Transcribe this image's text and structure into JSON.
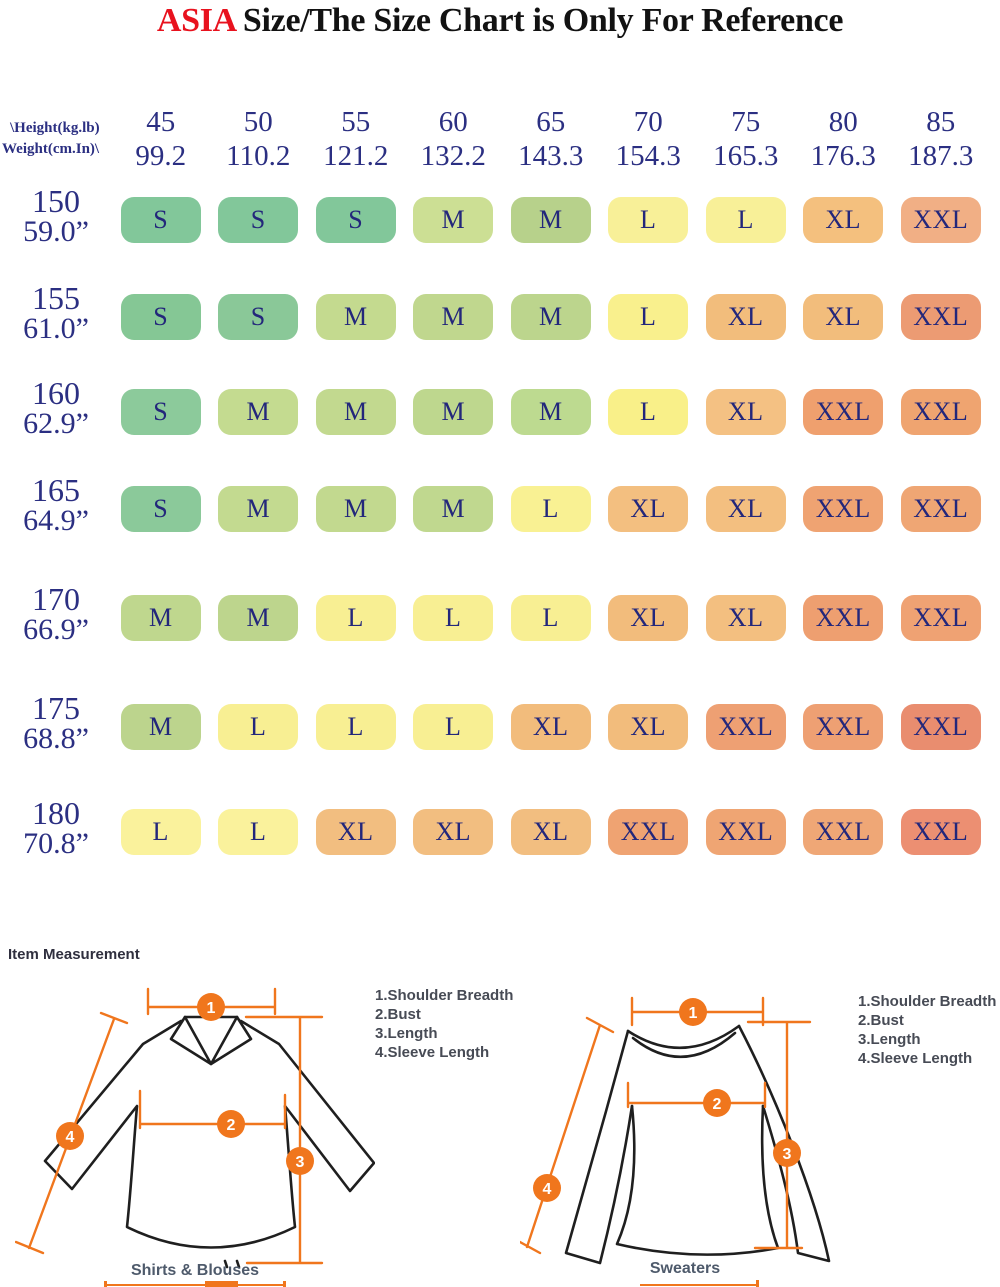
{
  "title": {
    "highlight": "ASIA",
    "rest": "Size/The Size Chart is Only For Reference",
    "highlight_color": "#E8121E"
  },
  "size_chart": {
    "corner": {
      "line1": "\\Height(kg.lb)",
      "line2": "Weight(cm.In)\\"
    },
    "text_color": "#23277B",
    "columns": [
      {
        "kg": "45",
        "lb": "99.2"
      },
      {
        "kg": "50",
        "lb": "110.2"
      },
      {
        "kg": "55",
        "lb": "121.2"
      },
      {
        "kg": "60",
        "lb": "132.2"
      },
      {
        "kg": "65",
        "lb": "143.3"
      },
      {
        "kg": "70",
        "lb": "154.3"
      },
      {
        "kg": "75",
        "lb": "165.3"
      },
      {
        "kg": "80",
        "lb": "176.3"
      },
      {
        "kg": "85",
        "lb": "187.3"
      }
    ],
    "rows": [
      {
        "height_cm": "150",
        "height_in": "59.0”",
        "cells": [
          {
            "label": "S",
            "color": "#82C79A"
          },
          {
            "label": "S",
            "color": "#82C79A"
          },
          {
            "label": "S",
            "color": "#82C79A"
          },
          {
            "label": "M",
            "color": "#CCDF94"
          },
          {
            "label": "M",
            "color": "#B7D18B"
          },
          {
            "label": "L",
            "color": "#F8F098"
          },
          {
            "label": "L",
            "color": "#F8F098"
          },
          {
            "label": "XL",
            "color": "#F4C07E"
          },
          {
            "label": "XXL",
            "color": "#F1AF85"
          }
        ]
      },
      {
        "height_cm": "155",
        "height_in": "61.0”",
        "cells": [
          {
            "label": "S",
            "color": "#85C795"
          },
          {
            "label": "S",
            "color": "#8AC898"
          },
          {
            "label": "M",
            "color": "#C4DA8F"
          },
          {
            "label": "M",
            "color": "#C0D78E"
          },
          {
            "label": "M",
            "color": "#BCD58D"
          },
          {
            "label": "L",
            "color": "#F9F08D"
          },
          {
            "label": "XL",
            "color": "#F2BD7C"
          },
          {
            "label": "XL",
            "color": "#F2BD7C"
          },
          {
            "label": "XXL",
            "color": "#EC9B73"
          }
        ]
      },
      {
        "height_cm": "160",
        "height_in": "62.9”",
        "cells": [
          {
            "label": "S",
            "color": "#8CCA9B"
          },
          {
            "label": "M",
            "color": "#C4DB90"
          },
          {
            "label": "M",
            "color": "#C2D98F"
          },
          {
            "label": "M",
            "color": "#BED78E"
          },
          {
            "label": "M",
            "color": "#BDDA90"
          },
          {
            "label": "L",
            "color": "#F9F089"
          },
          {
            "label": "XL",
            "color": "#F4C183"
          },
          {
            "label": "XXL",
            "color": "#EFA06E"
          },
          {
            "label": "XXL",
            "color": "#EFA470"
          }
        ]
      },
      {
        "height_cm": "165",
        "height_in": "64.9”",
        "cells": [
          {
            "label": "S",
            "color": "#8BC99A"
          },
          {
            "label": "M",
            "color": "#C3DA90"
          },
          {
            "label": "M",
            "color": "#C2D98F"
          },
          {
            "label": "M",
            "color": "#C0D88F"
          },
          {
            "label": "L",
            "color": "#F9F193"
          },
          {
            "label": "XL",
            "color": "#F3BF80"
          },
          {
            "label": "XL",
            "color": "#F3BF80"
          },
          {
            "label": "XXL",
            "color": "#EFA372"
          },
          {
            "label": "XXL",
            "color": "#EFA674"
          }
        ]
      },
      {
        "height_cm": "170",
        "height_in": "66.9”",
        "cells": [
          {
            "label": "M",
            "color": "#BFD78E"
          },
          {
            "label": "M",
            "color": "#BDD58D"
          },
          {
            "label": "L",
            "color": "#F8EF93"
          },
          {
            "label": "L",
            "color": "#F8EF93"
          },
          {
            "label": "L",
            "color": "#F8EF93"
          },
          {
            "label": "XL",
            "color": "#F2BC7C"
          },
          {
            "label": "XL",
            "color": "#F3BF80"
          },
          {
            "label": "XXL",
            "color": "#EE9F70"
          },
          {
            "label": "XXL",
            "color": "#EFA273"
          }
        ]
      },
      {
        "height_cm": "175",
        "height_in": "68.8”",
        "cells": [
          {
            "label": "M",
            "color": "#BCD48D"
          },
          {
            "label": "L",
            "color": "#F8EF93"
          },
          {
            "label": "L",
            "color": "#F8EF93"
          },
          {
            "label": "L",
            "color": "#F8EF93"
          },
          {
            "label": "XL",
            "color": "#F2BC7C"
          },
          {
            "label": "XL",
            "color": "#F2BC7C"
          },
          {
            "label": "XXL",
            "color": "#EEA073"
          },
          {
            "label": "XXL",
            "color": "#EEA073"
          },
          {
            "label": "XXL",
            "color": "#E98D6F"
          }
        ]
      },
      {
        "height_cm": "180",
        "height_in": "70.8”",
        "cells": [
          {
            "label": "L",
            "color": "#FAF29C"
          },
          {
            "label": "L",
            "color": "#FAF29C"
          },
          {
            "label": "XL",
            "color": "#F2BE80"
          },
          {
            "label": "XL",
            "color": "#F2BE80"
          },
          {
            "label": "XL",
            "color": "#F2BE80"
          },
          {
            "label": "XXL",
            "color": "#EFA372"
          },
          {
            "label": "XXL",
            "color": "#EFA573"
          },
          {
            "label": "XXL",
            "color": "#EFA776"
          },
          {
            "label": "XXL",
            "color": "#EC8F72"
          }
        ]
      }
    ]
  },
  "measurement": {
    "heading": "Item Measurement",
    "accent_color": "#F0761D",
    "badges": [
      "1",
      "2",
      "3",
      "4"
    ],
    "legend": [
      "1.Shoulder Breadth",
      "2.Bust",
      "3.Length",
      "4.Sleeve Length"
    ],
    "diagrams": [
      {
        "caption": "Shirts & Blouses"
      },
      {
        "caption": "Sweaters"
      }
    ]
  },
  "chart_data": {
    "type": "table",
    "title": "ASIA Size/The Size Chart is Only For Reference",
    "columns_weight_kg": [
      45,
      50,
      55,
      60,
      65,
      70,
      75,
      80,
      85
    ],
    "columns_weight_lb": [
      99.2,
      110.2,
      121.2,
      132.2,
      143.3,
      154.3,
      165.3,
      176.3,
      187.3
    ],
    "rows_height_cm": [
      150,
      155,
      160,
      165,
      170,
      175,
      180
    ],
    "rows_height_in": [
      "59.0",
      "61.0",
      "62.9",
      "64.9",
      "66.9",
      "68.8",
      "70.8"
    ],
    "matrix": [
      [
        "S",
        "S",
        "S",
        "M",
        "M",
        "L",
        "L",
        "XL",
        "XXL"
      ],
      [
        "S",
        "S",
        "M",
        "M",
        "M",
        "L",
        "XL",
        "XL",
        "XXL"
      ],
      [
        "S",
        "M",
        "M",
        "M",
        "M",
        "L",
        "XL",
        "XXL",
        "XXL"
      ],
      [
        "S",
        "M",
        "M",
        "M",
        "L",
        "XL",
        "XL",
        "XXL",
        "XXL"
      ],
      [
        "M",
        "M",
        "L",
        "L",
        "L",
        "XL",
        "XL",
        "XXL",
        "XXL"
      ],
      [
        "M",
        "L",
        "L",
        "L",
        "XL",
        "XL",
        "XXL",
        "XXL",
        "XXL"
      ],
      [
        "L",
        "L",
        "XL",
        "XL",
        "XL",
        "XXL",
        "XXL",
        "XXL",
        "XXL"
      ]
    ]
  }
}
